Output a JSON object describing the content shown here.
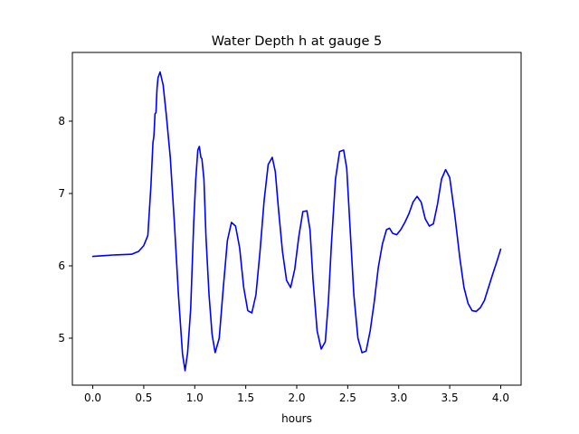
{
  "chart_data": {
    "type": "line",
    "title": "Water Depth h at gauge 5",
    "xlabel": "hours",
    "ylabel": "",
    "xlim": [
      -0.2,
      4.2
    ],
    "ylim": [
      4.35,
      8.95
    ],
    "xticks": [
      0.0,
      0.5,
      1.0,
      1.5,
      2.0,
      2.5,
      3.0,
      3.5,
      4.0
    ],
    "xtick_labels": [
      "0.0",
      "0.5",
      "1.0",
      "1.5",
      "2.0",
      "2.5",
      "3.0",
      "3.5",
      "4.0"
    ],
    "yticks": [
      5,
      6,
      7,
      8
    ],
    "ytick_labels": [
      "5",
      "6",
      "7",
      "8"
    ],
    "grid": false,
    "series": [
      {
        "color": "#0000ff",
        "x": [
          0.0,
          0.1,
          0.2,
          0.3,
          0.38,
          0.45,
          0.5,
          0.54,
          0.57,
          0.59,
          0.6,
          0.61,
          0.62,
          0.625,
          0.63,
          0.64,
          0.66,
          0.69,
          0.72,
          0.76,
          0.8,
          0.84,
          0.88,
          0.905,
          0.93,
          0.96,
          0.99,
          1.01,
          1.03,
          1.045,
          1.06,
          1.07,
          1.09,
          1.11,
          1.14,
          1.17,
          1.2,
          1.24,
          1.28,
          1.32,
          1.36,
          1.4,
          1.44,
          1.48,
          1.52,
          1.56,
          1.6,
          1.64,
          1.68,
          1.72,
          1.76,
          1.79,
          1.82,
          1.86,
          1.9,
          1.94,
          1.98,
          2.02,
          2.06,
          2.1,
          2.13,
          2.16,
          2.2,
          2.24,
          2.28,
          2.31,
          2.34,
          2.38,
          2.42,
          2.46,
          2.49,
          2.52,
          2.56,
          2.6,
          2.64,
          2.68,
          2.72,
          2.76,
          2.8,
          2.84,
          2.88,
          2.91,
          2.94,
          2.98,
          3.02,
          3.06,
          3.1,
          3.14,
          3.18,
          3.22,
          3.26,
          3.3,
          3.34,
          3.38,
          3.42,
          3.46,
          3.5,
          3.55,
          3.6,
          3.64,
          3.68,
          3.72,
          3.76,
          3.8,
          3.84,
          3.88,
          3.92,
          3.96,
          4.0
        ],
        "y": [
          6.13,
          6.14,
          6.15,
          6.155,
          6.16,
          6.2,
          6.28,
          6.42,
          7.1,
          7.7,
          7.8,
          8.1,
          8.12,
          8.3,
          8.45,
          8.6,
          8.68,
          8.5,
          8.1,
          7.5,
          6.6,
          5.6,
          4.78,
          4.55,
          4.8,
          5.4,
          6.6,
          7.2,
          7.6,
          7.65,
          7.5,
          7.48,
          7.2,
          6.4,
          5.6,
          5.05,
          4.8,
          5.0,
          5.7,
          6.35,
          6.6,
          6.55,
          6.25,
          5.7,
          5.38,
          5.35,
          5.6,
          6.2,
          6.9,
          7.4,
          7.5,
          7.3,
          6.8,
          6.2,
          5.8,
          5.7,
          5.95,
          6.4,
          6.75,
          6.76,
          6.5,
          5.8,
          5.1,
          4.85,
          4.95,
          5.5,
          6.3,
          7.2,
          7.58,
          7.6,
          7.35,
          6.6,
          5.6,
          5.0,
          4.8,
          4.82,
          5.1,
          5.5,
          5.98,
          6.3,
          6.5,
          6.52,
          6.45,
          6.43,
          6.5,
          6.6,
          6.72,
          6.88,
          6.96,
          6.88,
          6.65,
          6.55,
          6.58,
          6.85,
          7.2,
          7.33,
          7.22,
          6.7,
          6.1,
          5.7,
          5.48,
          5.38,
          5.37,
          5.42,
          5.52,
          5.7,
          5.88,
          6.05,
          6.23
        ]
      }
    ]
  }
}
